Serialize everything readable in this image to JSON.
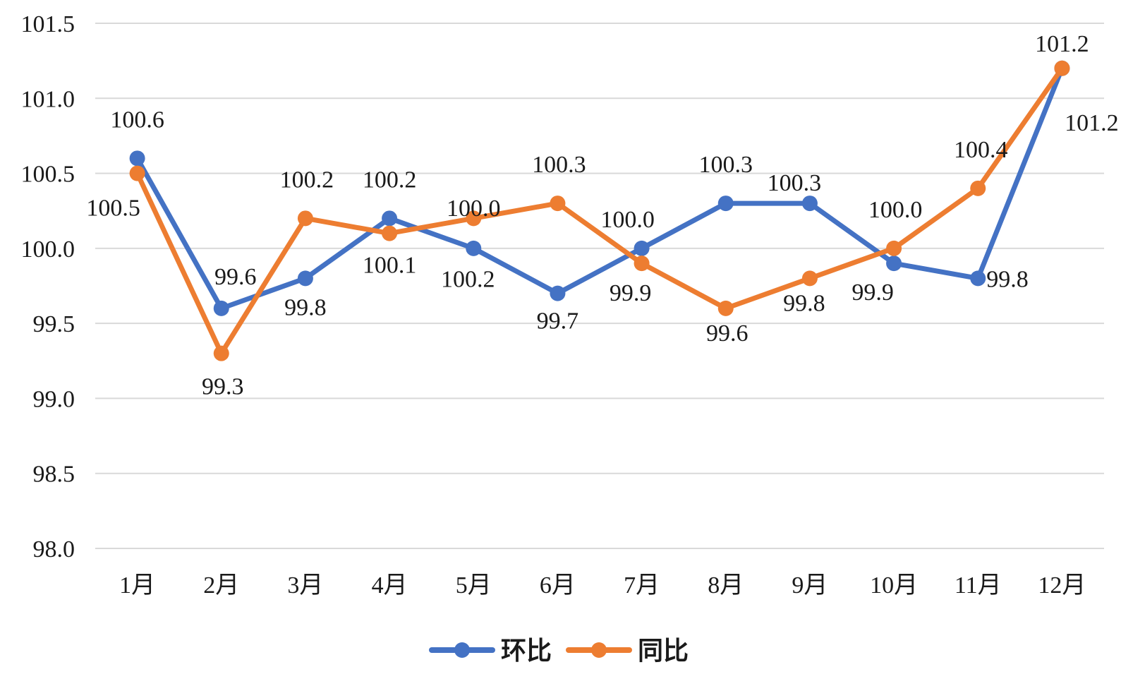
{
  "chart_data": {
    "type": "line",
    "categories": [
      "1月",
      "2月",
      "3月",
      "4月",
      "5月",
      "6月",
      "7月",
      "8月",
      "9月",
      "10月",
      "11月",
      "12月"
    ],
    "series": [
      {
        "name": "环比",
        "color": "#4472C4",
        "values": [
          100.6,
          99.6,
          99.8,
          100.2,
          100.0,
          99.7,
          100.0,
          100.3,
          100.3,
          99.9,
          99.8,
          101.2
        ],
        "labels": [
          "100.6",
          "99.6",
          "99.8",
          "100.2",
          "100.0",
          "99.7",
          "100.0",
          "100.3",
          "100.3",
          "99.9",
          "99.8",
          "101.2"
        ]
      },
      {
        "name": "同比",
        "color": "#ED7D31",
        "values": [
          100.5,
          99.3,
          100.2,
          100.1,
          100.2,
          100.3,
          99.9,
          99.6,
          99.8,
          100.0,
          100.4,
          101.2
        ],
        "labels": [
          "100.5",
          "99.3",
          "100.2",
          "100.1",
          "100.2",
          "100.3",
          "99.9",
          "99.6",
          "99.8",
          "100.0",
          "100.4",
          "101.2"
        ]
      }
    ],
    "yticks": [
      "98.0",
      "98.5",
      "99.0",
      "99.5",
      "100.0",
      "100.5",
      "101.0",
      "101.5"
    ],
    "ylim": [
      98.0,
      101.5
    ],
    "grid": true,
    "legend_position": "bottom"
  }
}
